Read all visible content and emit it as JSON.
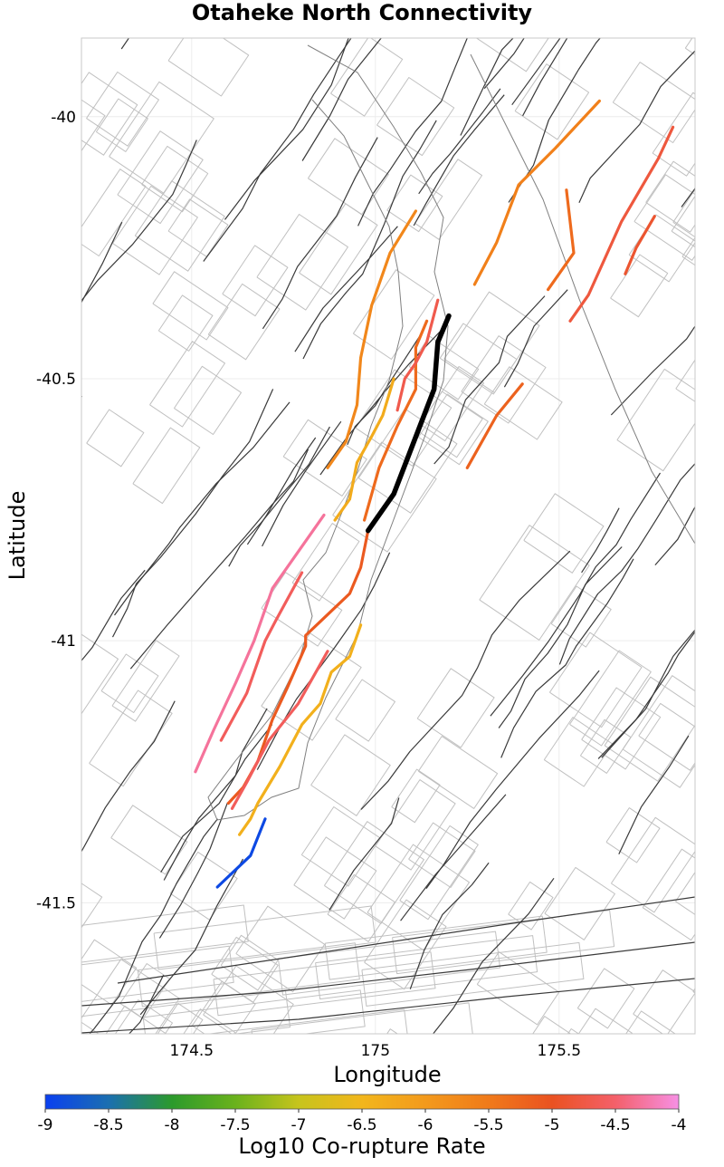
{
  "chart_data": {
    "type": "map",
    "title": "Otaheke North Connectivity",
    "xlabel": "Longitude",
    "ylabel": "Latitude",
    "xlim": [
      174.2,
      175.87
    ],
    "ylim": [
      -41.75,
      -39.85
    ],
    "x_ticks": [
      174.5,
      175,
      175.5
    ],
    "y_ticks": [
      -40,
      -40.5,
      -41,
      -41.5
    ],
    "x_tick_labels": [
      "174.5",
      "175",
      "175.5"
    ],
    "y_tick_labels": [
      "-40",
      "-40.5",
      "-41",
      "-41.5"
    ],
    "grid": true,
    "colorbar": {
      "label": "Log10 Co-rupture Rate",
      "min": -9,
      "max": -4,
      "ticks": [
        -9,
        -8.5,
        -8,
        -7.5,
        -7,
        -6.5,
        -6,
        -5.5,
        -5,
        -4.5,
        -4
      ],
      "tick_labels": [
        "-9",
        "-8.5",
        "-8",
        "-7.5",
        "-7",
        "-6.5",
        "-6",
        "-5.5",
        "-5",
        "-4.5",
        "-4"
      ],
      "stops": [
        {
          "v": -9,
          "c": "#0a3ff0"
        },
        {
          "v": -8.5,
          "c": "#1b6fb0"
        },
        {
          "v": -8,
          "c": "#2c9a2c"
        },
        {
          "v": -7.5,
          "c": "#6ab21c"
        },
        {
          "v": -7,
          "c": "#c7c41c"
        },
        {
          "v": -6.5,
          "c": "#f2b61c"
        },
        {
          "v": -6,
          "c": "#f39a1c"
        },
        {
          "v": -5.5,
          "c": "#f07a1a"
        },
        {
          "v": -5,
          "c": "#ea5221"
        },
        {
          "v": -4.5,
          "c": "#f4606a"
        },
        {
          "v": -4,
          "c": "#f690e4"
        }
      ]
    },
    "colors": {
      "coastline": "#808080",
      "fault_dark": "#3a3a3a",
      "fault_light": "#c0c0c0",
      "grid": "#ececec",
      "target": "#000000"
    },
    "target_fault": {
      "name": "Otaheke North",
      "points": [
        [
          175.2,
          -40.38
        ],
        [
          175.17,
          -40.43
        ],
        [
          175.16,
          -40.52
        ],
        [
          175.05,
          -40.72
        ],
        [
          174.98,
          -40.79
        ]
      ]
    },
    "coruptures": [
      {
        "rate": -5.6,
        "points": [
          [
            175.61,
            -39.97
          ],
          [
            175.49,
            -40.06
          ],
          [
            175.39,
            -40.13
          ],
          [
            175.33,
            -40.24
          ],
          [
            175.27,
            -40.32
          ]
        ]
      },
      {
        "rate": -4.8,
        "points": [
          [
            175.81,
            -40.02
          ],
          [
            175.77,
            -40.08
          ],
          [
            175.72,
            -40.14
          ],
          [
            175.67,
            -40.2
          ],
          [
            175.58,
            -40.34
          ],
          [
            175.53,
            -40.39
          ]
        ]
      },
      {
        "rate": -5.3,
        "points": [
          [
            175.52,
            -40.14
          ],
          [
            175.54,
            -40.26
          ],
          [
            175.47,
            -40.33
          ]
        ]
      },
      {
        "rate": -4.9,
        "points": [
          [
            175.76,
            -40.19
          ],
          [
            175.71,
            -40.25
          ],
          [
            175.68,
            -40.3
          ]
        ]
      },
      {
        "rate": -5.7,
        "points": [
          [
            175.11,
            -40.18
          ],
          [
            175.04,
            -40.26
          ],
          [
            174.99,
            -40.36
          ],
          [
            174.96,
            -40.46
          ],
          [
            174.95,
            -40.55
          ],
          [
            174.92,
            -40.62
          ],
          [
            174.87,
            -40.67
          ]
        ]
      },
      {
        "rate": -5.3,
        "points": [
          [
            175.14,
            -40.39
          ],
          [
            175.11,
            -40.44
          ],
          [
            175.11,
            -40.52
          ],
          [
            175.06,
            -40.59
          ],
          [
            175.01,
            -40.67
          ],
          [
            174.97,
            -40.77
          ]
        ]
      },
      {
        "rate": -4.7,
        "points": [
          [
            175.17,
            -40.35
          ],
          [
            175.14,
            -40.43
          ],
          [
            175.11,
            -40.47
          ],
          [
            175.08,
            -40.5
          ],
          [
            175.06,
            -40.56
          ]
        ]
      },
      {
        "rate": -6.3,
        "points": [
          [
            175.05,
            -40.5
          ],
          [
            175.02,
            -40.57
          ],
          [
            174.99,
            -40.61
          ],
          [
            174.95,
            -40.66
          ],
          [
            174.93,
            -40.73
          ],
          [
            174.89,
            -40.77
          ]
        ]
      },
      {
        "rate": -5.2,
        "points": [
          [
            175.4,
            -40.51
          ],
          [
            175.33,
            -40.57
          ],
          [
            175.25,
            -40.67
          ]
        ]
      },
      {
        "rate": -4.3,
        "points": [
          [
            174.86,
            -40.76
          ],
          [
            174.79,
            -40.83
          ],
          [
            174.72,
            -40.9
          ],
          [
            174.67,
            -41.0
          ],
          [
            174.62,
            -41.08
          ],
          [
            174.56,
            -41.17
          ],
          [
            174.51,
            -41.25
          ]
        ]
      },
      {
        "rate": -4.6,
        "points": [
          [
            174.8,
            -40.87
          ],
          [
            174.73,
            -40.96
          ],
          [
            174.7,
            -41.0
          ],
          [
            174.65,
            -41.1
          ],
          [
            174.58,
            -41.19
          ]
        ]
      },
      {
        "rate": -5.1,
        "points": [
          [
            174.98,
            -40.79
          ],
          [
            174.96,
            -40.86
          ],
          [
            174.93,
            -40.91
          ],
          [
            174.87,
            -40.95
          ],
          [
            174.81,
            -40.99
          ],
          [
            174.81,
            -41.01
          ],
          [
            174.76,
            -41.09
          ],
          [
            174.72,
            -41.15
          ],
          [
            174.68,
            -41.23
          ],
          [
            174.64,
            -41.28
          ],
          [
            174.6,
            -41.31
          ]
        ]
      },
      {
        "rate": -4.6,
        "points": [
          [
            174.87,
            -41.02
          ],
          [
            174.79,
            -41.12
          ],
          [
            174.71,
            -41.19
          ],
          [
            174.65,
            -41.27
          ],
          [
            174.61,
            -41.32
          ]
        ]
      },
      {
        "rate": -6.4,
        "points": [
          [
            174.96,
            -40.97
          ],
          [
            174.93,
            -41.03
          ],
          [
            174.88,
            -41.06
          ],
          [
            174.85,
            -41.12
          ],
          [
            174.8,
            -41.16
          ],
          [
            174.74,
            -41.24
          ],
          [
            174.68,
            -41.31
          ],
          [
            174.66,
            -41.34
          ],
          [
            174.63,
            -41.37
          ]
        ]
      },
      {
        "rate": -8.9,
        "points": [
          [
            174.7,
            -41.34
          ],
          [
            174.66,
            -41.41
          ],
          [
            174.57,
            -41.47
          ]
        ]
      }
    ]
  }
}
